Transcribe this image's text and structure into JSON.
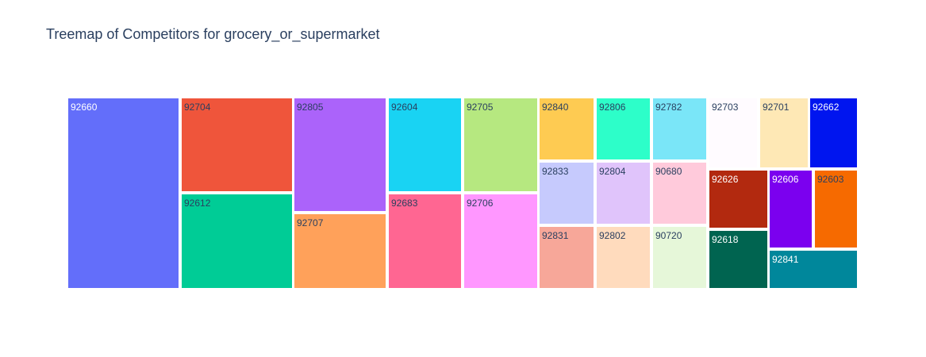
{
  "chart_data": {
    "type": "treemap",
    "title": "Treemap of Competitors for grocery_or_supermarket",
    "items": [
      {
        "label": "92660",
        "color": "#636efa",
        "text_color": "#ffffff"
      },
      {
        "label": "92704",
        "color": "#ef553b",
        "text_color": "#2a3f5f"
      },
      {
        "label": "92612",
        "color": "#00cc96",
        "text_color": "#2a3f5f"
      },
      {
        "label": "92805",
        "color": "#ab63fa",
        "text_color": "#2a3f5f"
      },
      {
        "label": "92707",
        "color": "#ffa15a",
        "text_color": "#2a3f5f"
      },
      {
        "label": "92604",
        "color": "#19d3f3",
        "text_color": "#2a3f5f"
      },
      {
        "label": "92683",
        "color": "#ff6692",
        "text_color": "#2a3f5f"
      },
      {
        "label": "92705",
        "color": "#b6e880",
        "text_color": "#2a3f5f"
      },
      {
        "label": "92706",
        "color": "#ff97ff",
        "text_color": "#2a3f5f"
      },
      {
        "label": "92840",
        "color": "#fecb52",
        "text_color": "#2a3f5f"
      },
      {
        "label": "92833",
        "color": "#c6ca fd",
        "text_color": "#2a3f5f"
      },
      {
        "label": "92831",
        "color": "#f7a799",
        "text_color": "#2a3f5f"
      },
      {
        "label": "92806",
        "color": "#2dfec9",
        "text_color": "#2a3f5f"
      },
      {
        "label": "92804",
        "color": "#e0c4fb",
        "text_color": "#2a3f5f"
      },
      {
        "label": "92802",
        "color": "#ffdbbd",
        "text_color": "#2a3f5f"
      },
      {
        "label": "92782",
        "color": "#7ae6f8",
        "text_color": "#2a3f5f"
      },
      {
        "label": "90680",
        "color": "#ffcadb",
        "text_color": "#2a3f5f"
      },
      {
        "label": "90720",
        "color": "#e6f7d9",
        "text_color": "#2a3f5f"
      },
      {
        "label": "92703",
        "color": "#fffbff",
        "text_color": "#2a3f5f"
      },
      {
        "label": "92626",
        "color": "#b2290f",
        "text_color": "#ffffff"
      },
      {
        "label": "92618",
        "color": "#006450",
        "text_color": "#ffffff"
      },
      {
        "label": "92701",
        "color": "#fee8b5",
        "text_color": "#2a3f5f"
      },
      {
        "label": "92606",
        "color": "#7b00ef",
        "text_color": "#ffffff"
      },
      {
        "label": "92662",
        "color": "#0015ef",
        "text_color": "#ffffff"
      },
      {
        "label": "92603",
        "color": "#f66a00",
        "text_color": "#2a3f5f"
      },
      {
        "label": "92841",
        "color": "#00879b",
        "text_color": "#ffffff"
      }
    ]
  }
}
